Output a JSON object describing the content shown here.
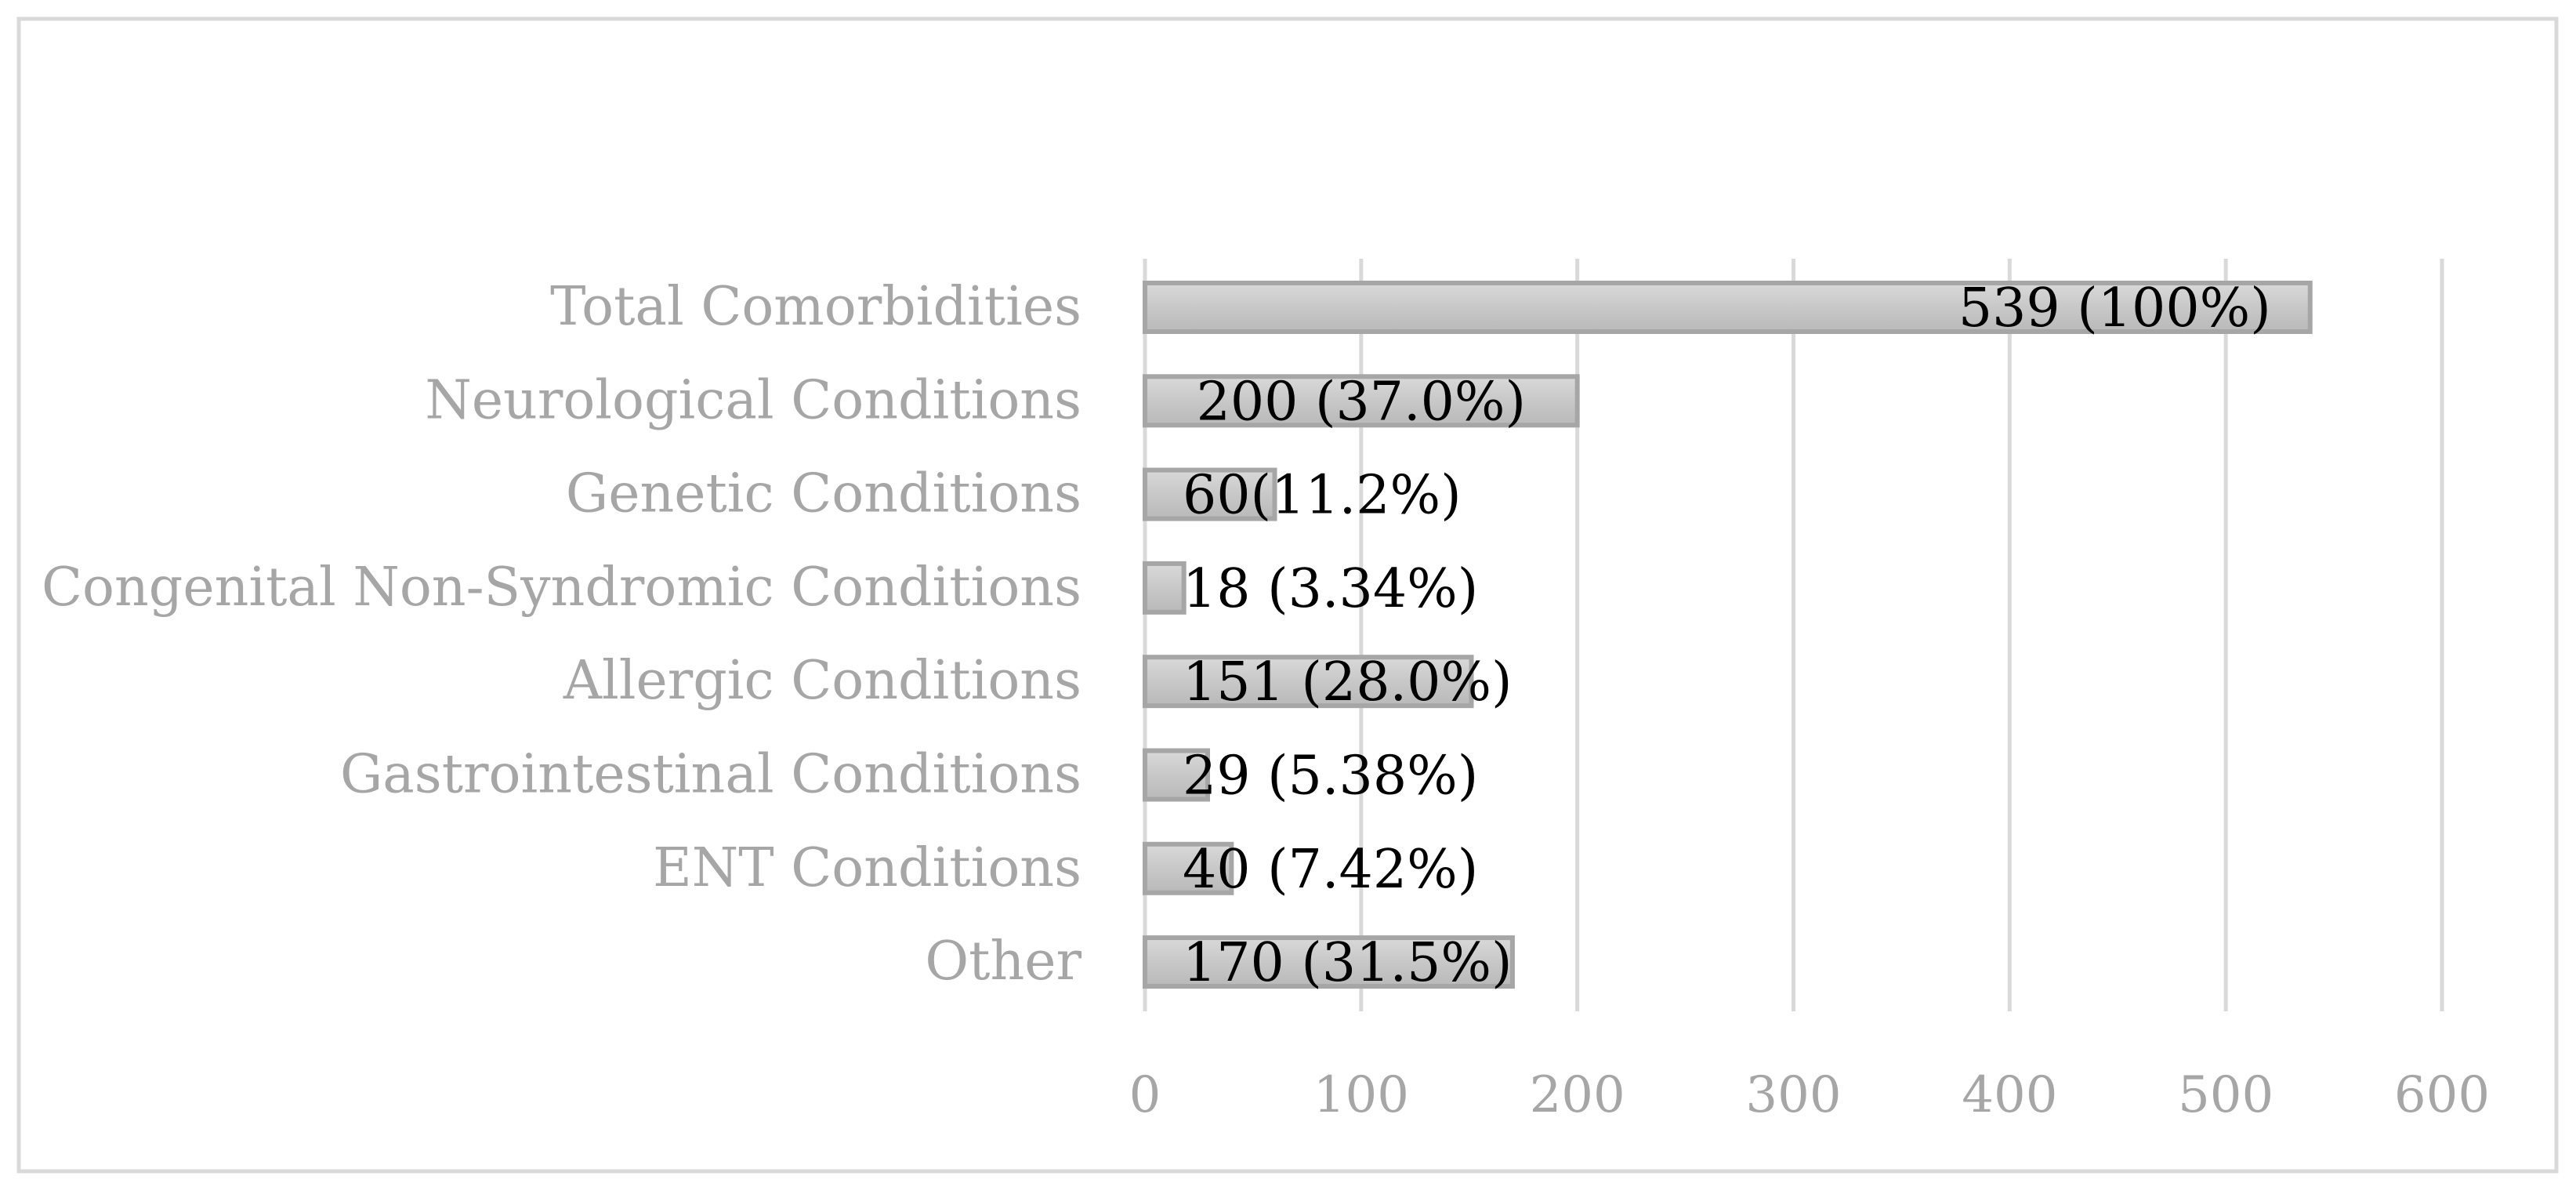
{
  "chart_data": {
    "type": "bar",
    "orientation": "horizontal",
    "title": "",
    "xlabel": "",
    "ylabel": "",
    "categories": [
      "Total Comorbidities",
      "Neurological Conditions",
      "Genetic Conditions",
      "Congenital Non-Syndromic Conditions",
      "Allergic Conditions",
      "Gastrointestinal Conditions",
      "ENT Conditions",
      "Other"
    ],
    "values": [
      539,
      200,
      60,
      18,
      151,
      29,
      40,
      170
    ],
    "data_labels": [
      "539 (100%)",
      "200 (37.0%)",
      "60(11.2%)",
      "18 (3.34%)",
      "151 (28.0%)",
      "29 (5.38%)",
      "40 (7.42%)",
      "170 (31.5%)"
    ],
    "xlim": [
      0,
      600
    ],
    "xticks": [
      "0",
      "100",
      "200",
      "300",
      "400",
      "500",
      "600"
    ],
    "grid": "vertical",
    "legend": "none",
    "colors": {
      "bar_fill": "#c9c9c9",
      "bar_stroke": "#a6a6a6",
      "grid": "#d9d9d9",
      "category_text": "#a6a6a6",
      "tick_text": "#a6a6a6",
      "data_label_text": "#000000",
      "frame": "#d9d9d9"
    }
  }
}
